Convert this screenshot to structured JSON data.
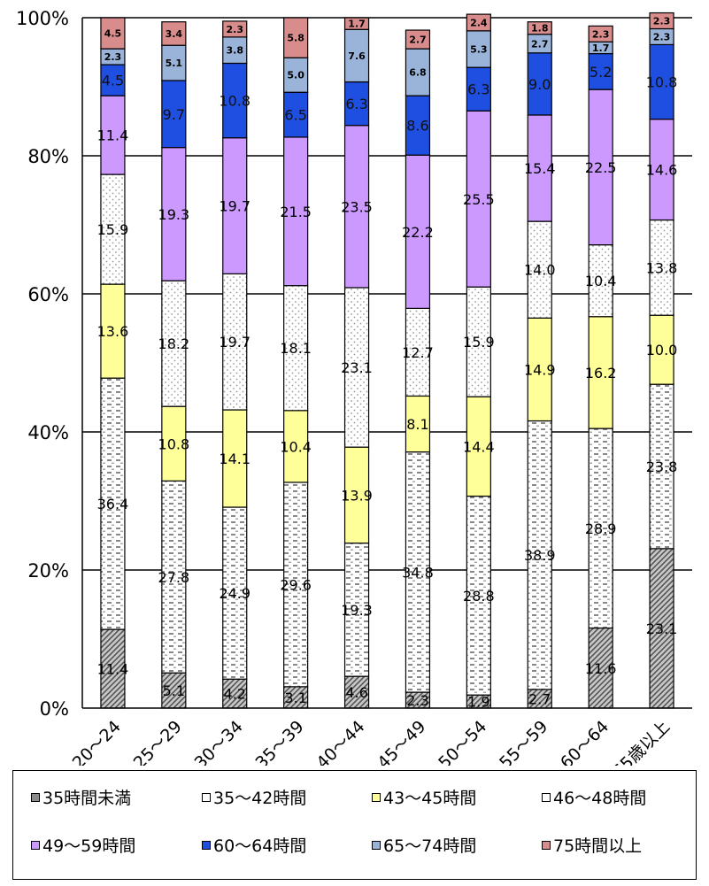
{
  "chart_data": {
    "type": "bar",
    "stacked": true,
    "percent": true,
    "categories": [
      "20～24",
      "25～29",
      "30～34",
      "35～39",
      "40～44",
      "45～49",
      "50～54",
      "55～59",
      "60～64",
      "65歳以上"
    ],
    "ylim": [
      0,
      100
    ],
    "y_ticks": [
      "0%",
      "20%",
      "40%",
      "60%",
      "80%",
      "100%"
    ],
    "grid": true,
    "legend_position": "bottom",
    "series": [
      {
        "name": "35時間未満",
        "color": "#9a9a9a",
        "pattern": "hatch",
        "values": [
          11.4,
          5.1,
          4.2,
          3.1,
          4.6,
          2.3,
          1.9,
          2.7,
          11.6,
          23.1
        ]
      },
      {
        "name": "35～42時間",
        "color": "#ffffff",
        "pattern": "dashes",
        "values": [
          36.4,
          27.8,
          24.9,
          29.6,
          19.3,
          34.8,
          28.8,
          38.9,
          28.9,
          23.8
        ]
      },
      {
        "name": "43～45時間",
        "color": "#ffff99",
        "pattern": "solid",
        "values": [
          13.6,
          10.8,
          14.1,
          10.4,
          13.9,
          8.1,
          14.4,
          14.9,
          16.2,
          10.0
        ]
      },
      {
        "name": "46～48時間",
        "color": "#ffffff",
        "pattern": "dots",
        "values": [
          15.9,
          18.2,
          19.7,
          18.1,
          23.1,
          12.7,
          15.9,
          14.0,
          10.4,
          13.8
        ]
      },
      {
        "name": "49～59時間",
        "color": "#cc99ff",
        "pattern": "solid",
        "values": [
          11.4,
          19.3,
          19.7,
          21.5,
          23.5,
          22.2,
          25.5,
          15.4,
          22.5,
          14.6
        ]
      },
      {
        "name": "60～64時間",
        "color": "#1f4fe0",
        "pattern": "solid",
        "values": [
          4.5,
          9.7,
          10.8,
          6.5,
          6.3,
          8.6,
          6.3,
          9.0,
          5.2,
          10.8
        ]
      },
      {
        "name": "65～74時間",
        "color": "#99b3d9",
        "pattern": "solid",
        "values": [
          2.3,
          5.1,
          3.8,
          5.0,
          7.6,
          6.8,
          5.3,
          2.7,
          1.7,
          2.3
        ]
      },
      {
        "name": "75時間以上",
        "color": "#d98c8c",
        "pattern": "solid",
        "values": [
          4.5,
          3.4,
          2.3,
          5.8,
          1.7,
          2.7,
          2.4,
          1.8,
          2.3,
          2.3
        ]
      }
    ]
  }
}
